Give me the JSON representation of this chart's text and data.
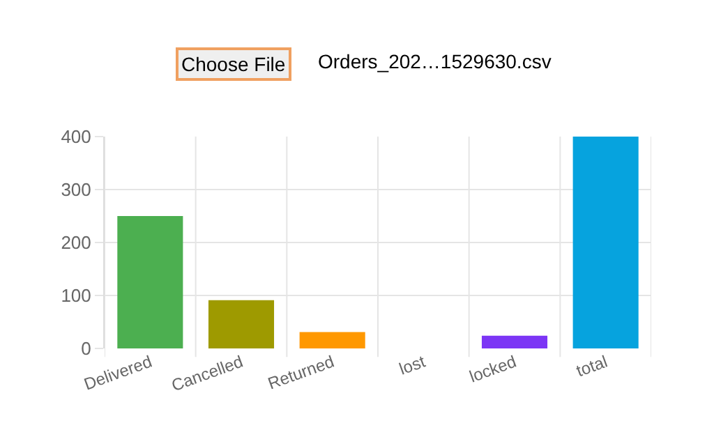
{
  "chart_data": {
    "type": "bar",
    "categories": [
      "Delivered",
      "Cancelled",
      "Returned",
      "lost",
      "locked",
      "total"
    ],
    "values": [
      250,
      91,
      31,
      0,
      24,
      400
    ],
    "colors": [
      "#4caf50",
      "#9e9a00",
      "#ff9800",
      "#e53935",
      "#7c35f5",
      "#06a3de"
    ],
    "ylim": [
      0,
      400
    ],
    "yticks": [
      0,
      100,
      200,
      300,
      400
    ],
    "grid": true,
    "annotations": [
      "Choose File",
      "Orders_202…1529630.csv"
    ]
  }
}
